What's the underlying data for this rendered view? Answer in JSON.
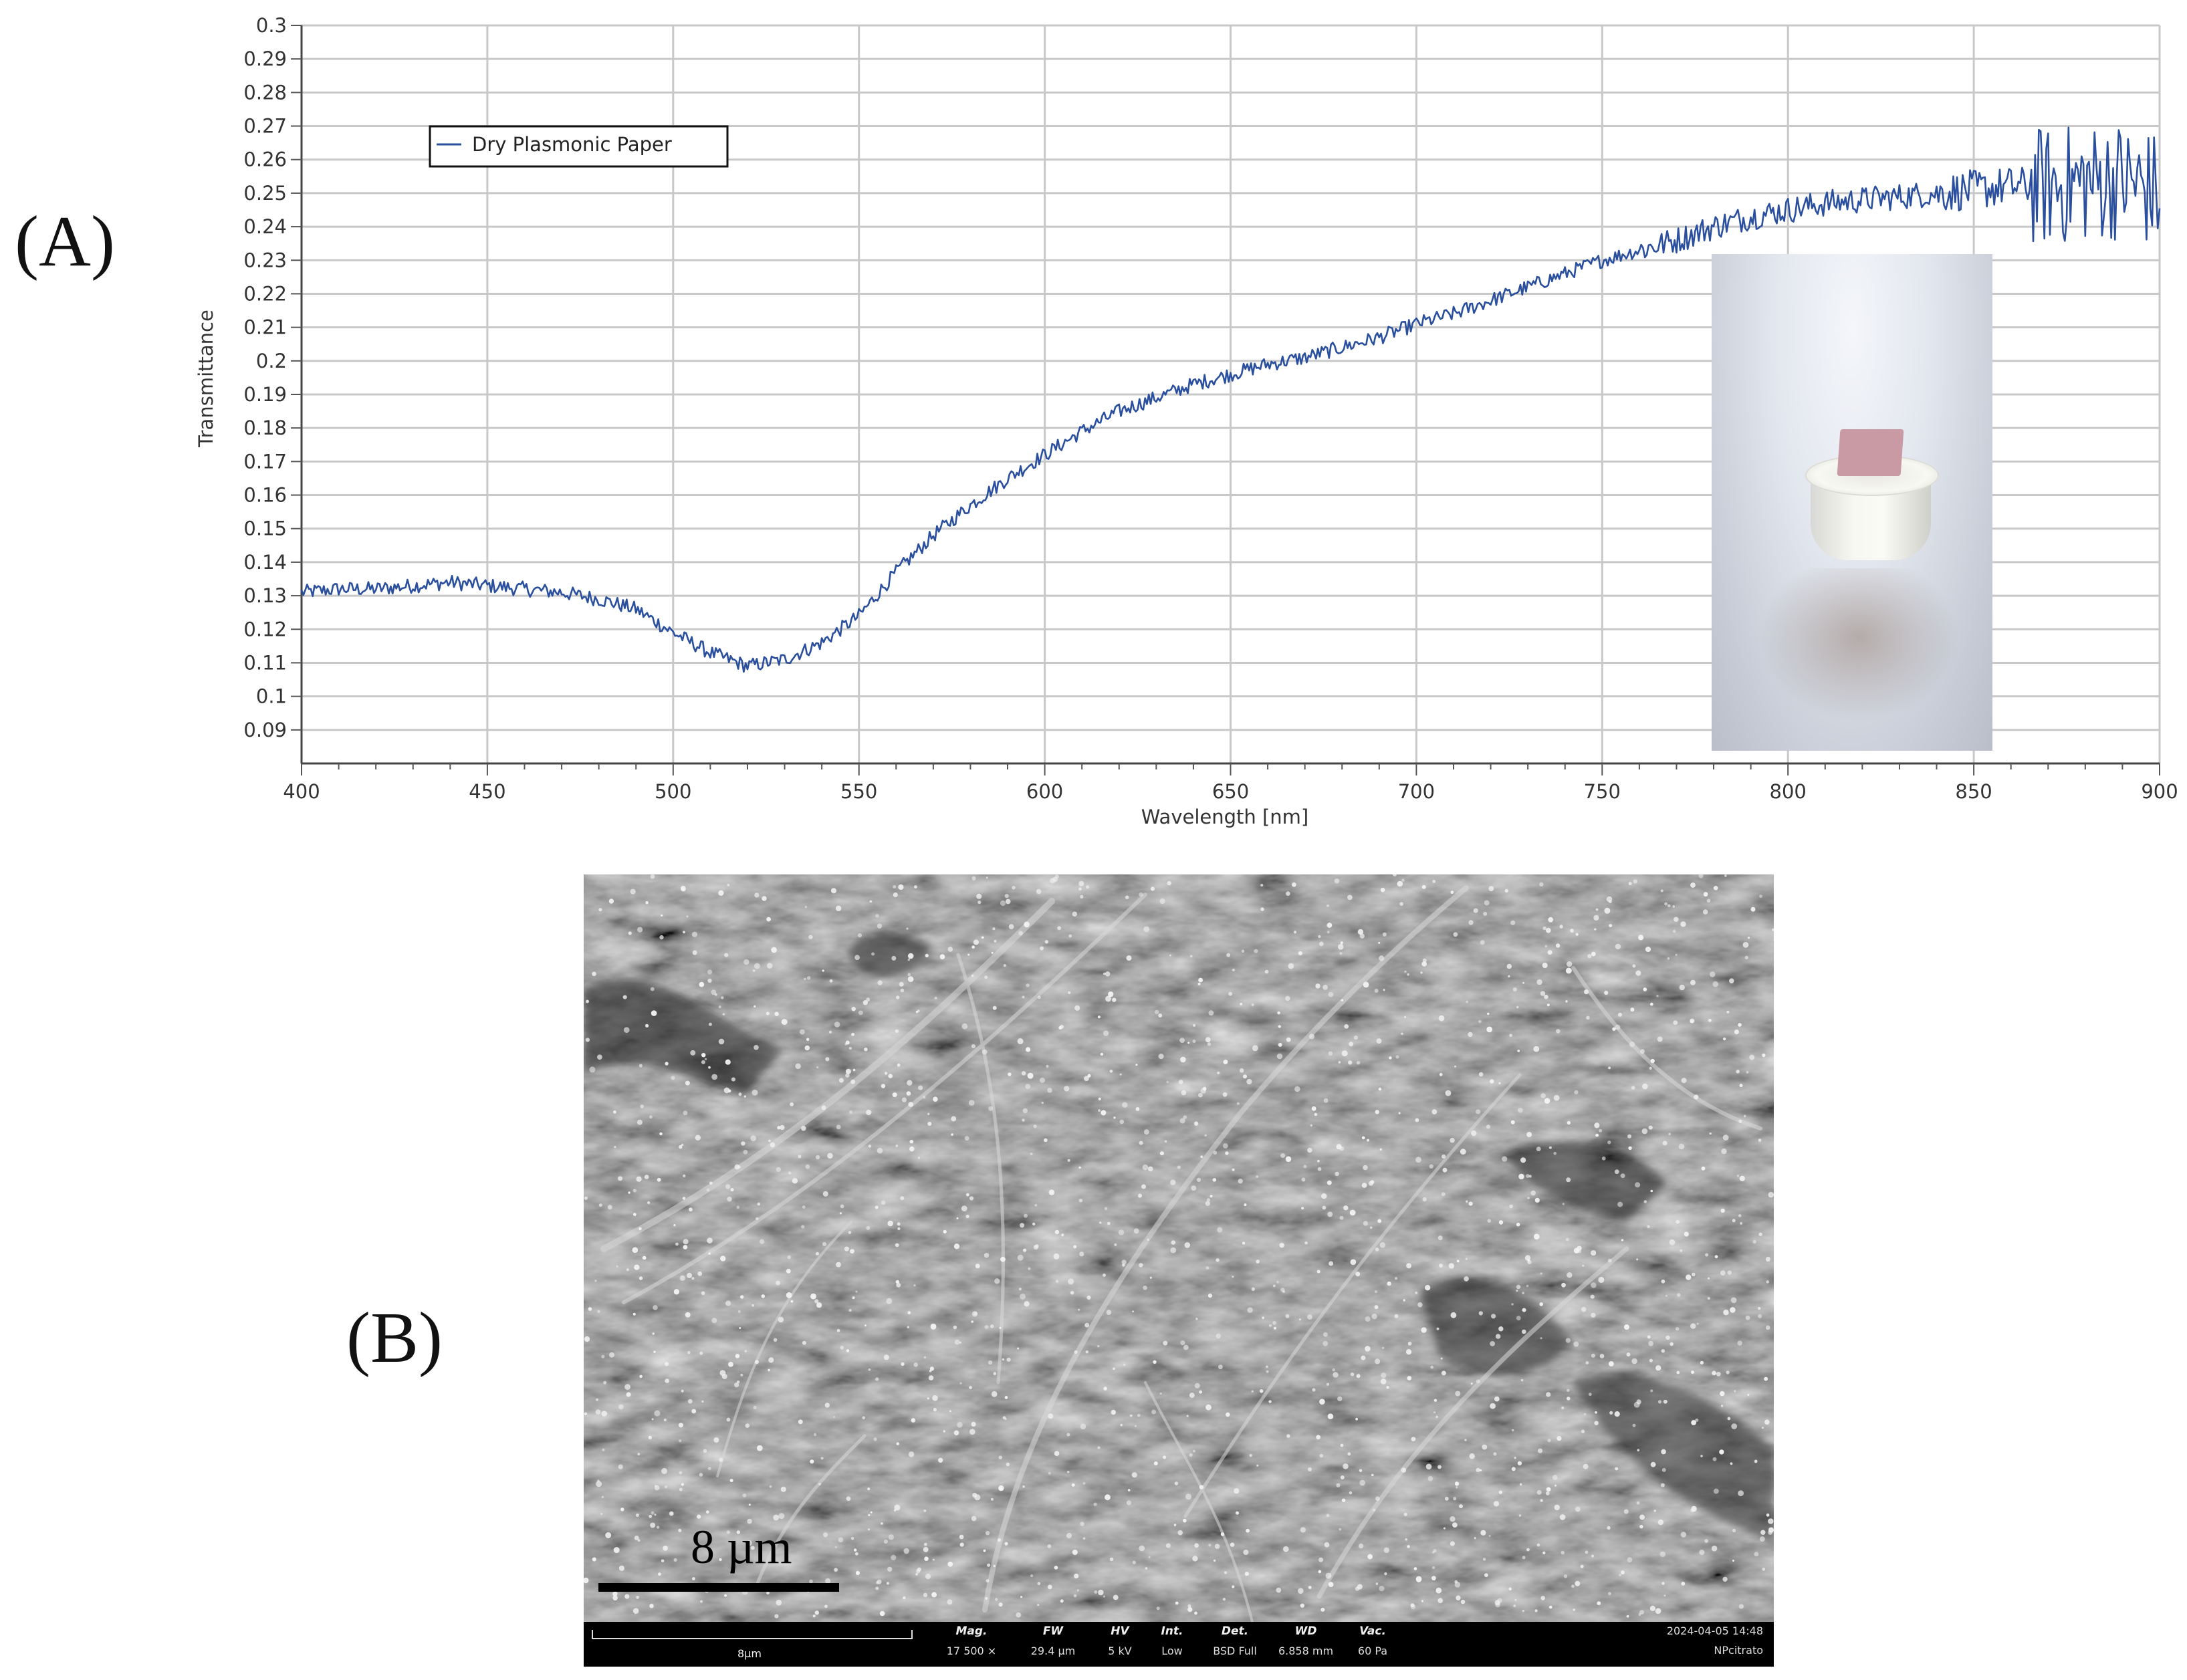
{
  "panel_labels": {
    "a": "(A)",
    "b": "(B)"
  },
  "chart_data": {
    "type": "line",
    "title": "",
    "xlabel": "Wavelength [nm]",
    "ylabel": "Transmittance",
    "xlim": [
      400,
      900
    ],
    "ylim": [
      0.08,
      0.3
    ],
    "x_ticks": [
      400,
      450,
      500,
      550,
      600,
      650,
      700,
      750,
      800,
      850,
      900
    ],
    "y_ticks": [
      0.09,
      0.1,
      0.11,
      0.12,
      0.13,
      0.14,
      0.15,
      0.16,
      0.17,
      0.18,
      0.19,
      0.2,
      0.21,
      0.22,
      0.23,
      0.24,
      0.25,
      0.26,
      0.27,
      0.28,
      0.29,
      0.3
    ],
    "y_tick_labels": [
      "0.09",
      "0.1",
      "0.11",
      "0.12",
      "0.13",
      "0.14",
      "0.15",
      "0.16",
      "0.17",
      "0.18",
      "0.19",
      "0.2",
      "0.21",
      "0.22",
      "0.23",
      "0.24",
      "0.25",
      "0.26",
      "0.27",
      "0.28",
      "0.29",
      "0.3"
    ],
    "grid": true,
    "legend_position": "top-left",
    "series": [
      {
        "name": "Dry Plasmonic Paper",
        "color": "#2a4f9e",
        "x": [
          400,
          410,
          420,
          430,
          440,
          450,
          460,
          470,
          480,
          490,
          500,
          510,
          520,
          530,
          540,
          550,
          560,
          570,
          580,
          590,
          600,
          610,
          620,
          630,
          640,
          650,
          660,
          670,
          680,
          690,
          700,
          710,
          720,
          730,
          740,
          750,
          760,
          770,
          780,
          790,
          800,
          810,
          820,
          830,
          840,
          850,
          860,
          870,
          880,
          890,
          900
        ],
        "y": [
          0.131,
          0.132,
          0.132,
          0.133,
          0.134,
          0.133,
          0.132,
          0.131,
          0.129,
          0.126,
          0.119,
          0.113,
          0.109,
          0.111,
          0.116,
          0.124,
          0.137,
          0.148,
          0.157,
          0.165,
          0.172,
          0.179,
          0.185,
          0.189,
          0.193,
          0.196,
          0.199,
          0.201,
          0.204,
          0.207,
          0.211,
          0.214,
          0.218,
          0.222,
          0.226,
          0.23,
          0.233,
          0.236,
          0.24,
          0.243,
          0.245,
          0.247,
          0.248,
          0.249,
          0.25,
          0.251,
          0.252,
          0.252,
          0.253,
          0.254,
          0.25
        ]
      }
    ]
  },
  "sem": {
    "scale_label": "8 µm",
    "info": {
      "bar_label": "8µm",
      "columns": [
        {
          "head": "Mag.",
          "value": "17 500 ×"
        },
        {
          "head": "FW",
          "value": "29.4 µm"
        },
        {
          "head": "HV",
          "value": "5 kV"
        },
        {
          "head": "Int.",
          "value": "Low"
        },
        {
          "head": "Det.",
          "value": "BSD Full"
        },
        {
          "head": "WD",
          "value": "6.858 mm"
        },
        {
          "head": "Vac.",
          "value": "60 Pa"
        }
      ],
      "datetime": "2024-04-05 14:48",
      "sample": "NPcitrato"
    }
  }
}
